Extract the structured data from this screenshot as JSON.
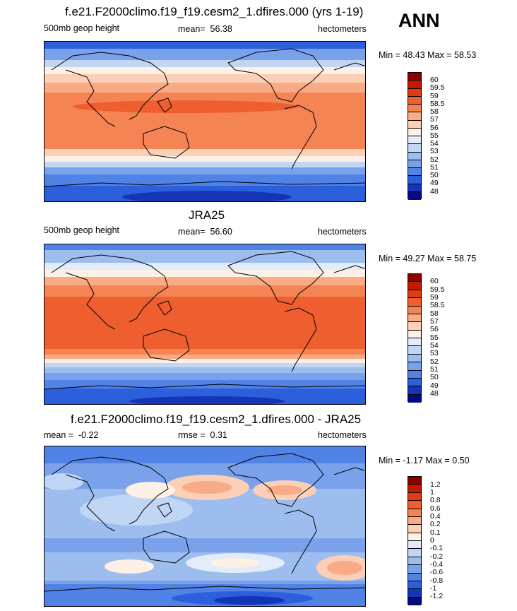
{
  "season": "ANN",
  "panels": [
    {
      "title": "f.e21.F2000climo.f19_f19.cesm2_1.dfires.000 (yrs 1-19)",
      "left_label": "500mb geop height",
      "stat_label": "mean=",
      "stat_value": "56.38",
      "units": "hectometers",
      "min_label": "Min =",
      "min_value": "48.43",
      "max_label": "Max =",
      "max_value": "58.53",
      "levels": [
        "60",
        "59.5",
        "59",
        "58.5",
        "58",
        "57",
        "56",
        "55",
        "54",
        "53",
        "52",
        "51",
        "50",
        "49",
        "48"
      ],
      "colors": [
        "#8c0000",
        "#c41900",
        "#e03c0f",
        "#ef5e2e",
        "#f48454",
        "#f8ab84",
        "#fbd0b6",
        "#fdf0e4",
        "#e2ecfa",
        "#c1d5f4",
        "#9ebdef",
        "#7aa2eb",
        "#5183e6",
        "#2c5fdc",
        "#1535b8",
        "#050a7d"
      ]
    },
    {
      "title": "JRA25",
      "left_label": "500mb geop height",
      "stat_label": "mean=",
      "stat_value": "56.60",
      "units": "hectometers",
      "min_label": "Min =",
      "min_value": "49.27",
      "max_label": "Max =",
      "max_value": "58.75",
      "levels": [
        "60",
        "59.5",
        "59",
        "58.5",
        "58",
        "57",
        "56",
        "55",
        "54",
        "53",
        "52",
        "51",
        "50",
        "49",
        "48"
      ],
      "colors": [
        "#8c0000",
        "#c41900",
        "#e03c0f",
        "#ef5e2e",
        "#f48454",
        "#f8ab84",
        "#fbd0b6",
        "#fdf0e4",
        "#e2ecfa",
        "#c1d5f4",
        "#9ebdef",
        "#7aa2eb",
        "#5183e6",
        "#2c5fdc",
        "#1535b8",
        "#050a7d"
      ]
    },
    {
      "title": "f.e21.F2000climo.f19_f19.cesm2_1.dfires.000 - JRA25",
      "left_label": "mean =",
      "left_value": "-0.22",
      "stat_label": "rmse =",
      "stat_value": "0.31",
      "units": "hectometers",
      "min_label": "Min =",
      "min_value": "-1.17",
      "max_label": "Max =",
      "max_value": "0.50",
      "levels": [
        "1.2",
        "1",
        "0.8",
        "0.6",
        "0.4",
        "0.2",
        "0.1",
        "0",
        "-0.1",
        "-0.2",
        "-0.4",
        "-0.6",
        "-0.8",
        "-1",
        "-1.2"
      ],
      "colors": [
        "#8c0000",
        "#c41900",
        "#e03c0f",
        "#ef5e2e",
        "#f48454",
        "#f8ab84",
        "#fbd0b6",
        "#fdf0e4",
        "#e2ecfa",
        "#c1d5f4",
        "#9ebdef",
        "#7aa2eb",
        "#5183e6",
        "#2c5fdc",
        "#1535b8",
        "#050a7d"
      ]
    }
  ]
}
